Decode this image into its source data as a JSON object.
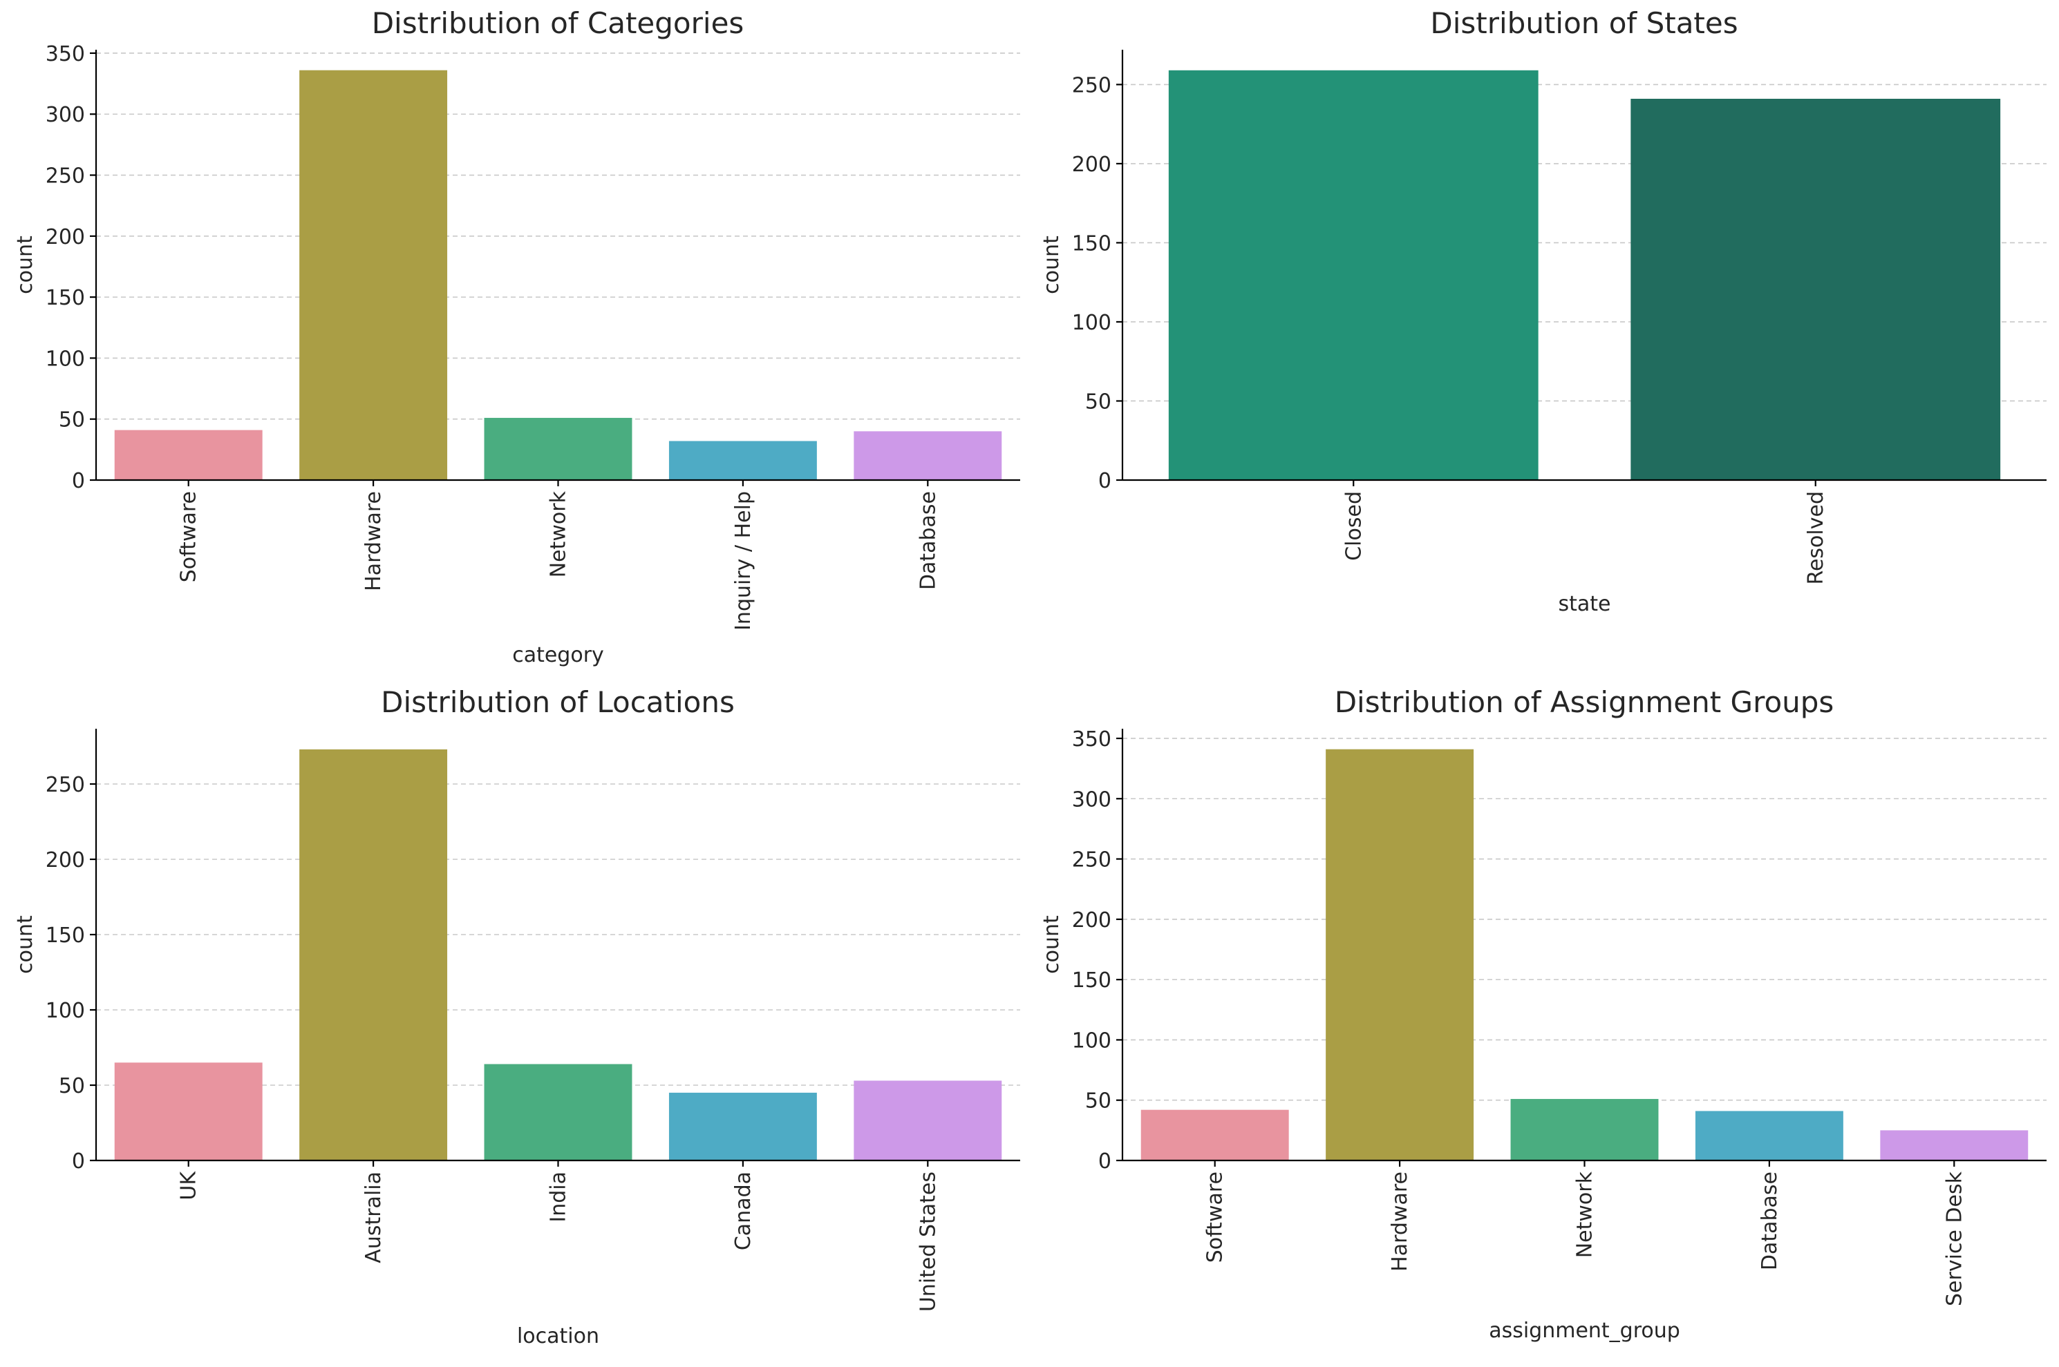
{
  "chart_data": [
    {
      "type": "bar",
      "title": "Distribution of Categories",
      "xlabel": "category",
      "ylabel": "count",
      "categories": [
        "Software",
        "Hardware",
        "Network",
        "Inquiry / Help",
        "Database"
      ],
      "values": [
        41,
        336,
        51,
        32,
        40
      ],
      "colors": [
        "#e8949f",
        "#aa9e45",
        "#4aad80",
        "#4eabc5",
        "#cd99e8"
      ],
      "yticks": [
        0,
        50,
        100,
        150,
        200,
        250,
        300,
        350
      ],
      "ylim": [
        0,
        352.8
      ],
      "grid": true,
      "legend": "none"
    },
    {
      "type": "bar",
      "title": "Distribution of States",
      "xlabel": "state",
      "ylabel": "count",
      "categories": [
        "Closed",
        "Resolved"
      ],
      "values": [
        259,
        241
      ],
      "colors": [
        "#239277",
        "#216c5e"
      ],
      "yticks": [
        0,
        50,
        100,
        150,
        200,
        250
      ],
      "ylim": [
        0,
        272
      ],
      "grid": true,
      "legend": "none"
    },
    {
      "type": "bar",
      "title": "Distribution of Locations",
      "xlabel": "location",
      "ylabel": "count",
      "categories": [
        "UK",
        "Australia",
        "India",
        "Canada",
        "United States"
      ],
      "values": [
        65,
        273,
        64,
        45,
        53
      ],
      "colors": [
        "#e8949f",
        "#aa9e45",
        "#4aad80",
        "#4eabc5",
        "#cd99e8"
      ],
      "yticks": [
        0,
        50,
        100,
        150,
        200,
        250
      ],
      "ylim": [
        0,
        286.7
      ],
      "grid": true,
      "legend": "none"
    },
    {
      "type": "bar",
      "title": "Distribution of Assignment Groups",
      "xlabel": "assignment_group",
      "ylabel": "count",
      "categories": [
        "Software",
        "Hardware",
        "Network",
        "Database",
        "Service Desk"
      ],
      "values": [
        42,
        341,
        51,
        41,
        25
      ],
      "colors": [
        "#e8949f",
        "#aa9e45",
        "#4aad80",
        "#4eabc5",
        "#cd99e8"
      ],
      "yticks": [
        0,
        50,
        100,
        150,
        200,
        250,
        300,
        350
      ],
      "ylim": [
        0,
        358
      ],
      "grid": true,
      "legend": "none"
    }
  ]
}
